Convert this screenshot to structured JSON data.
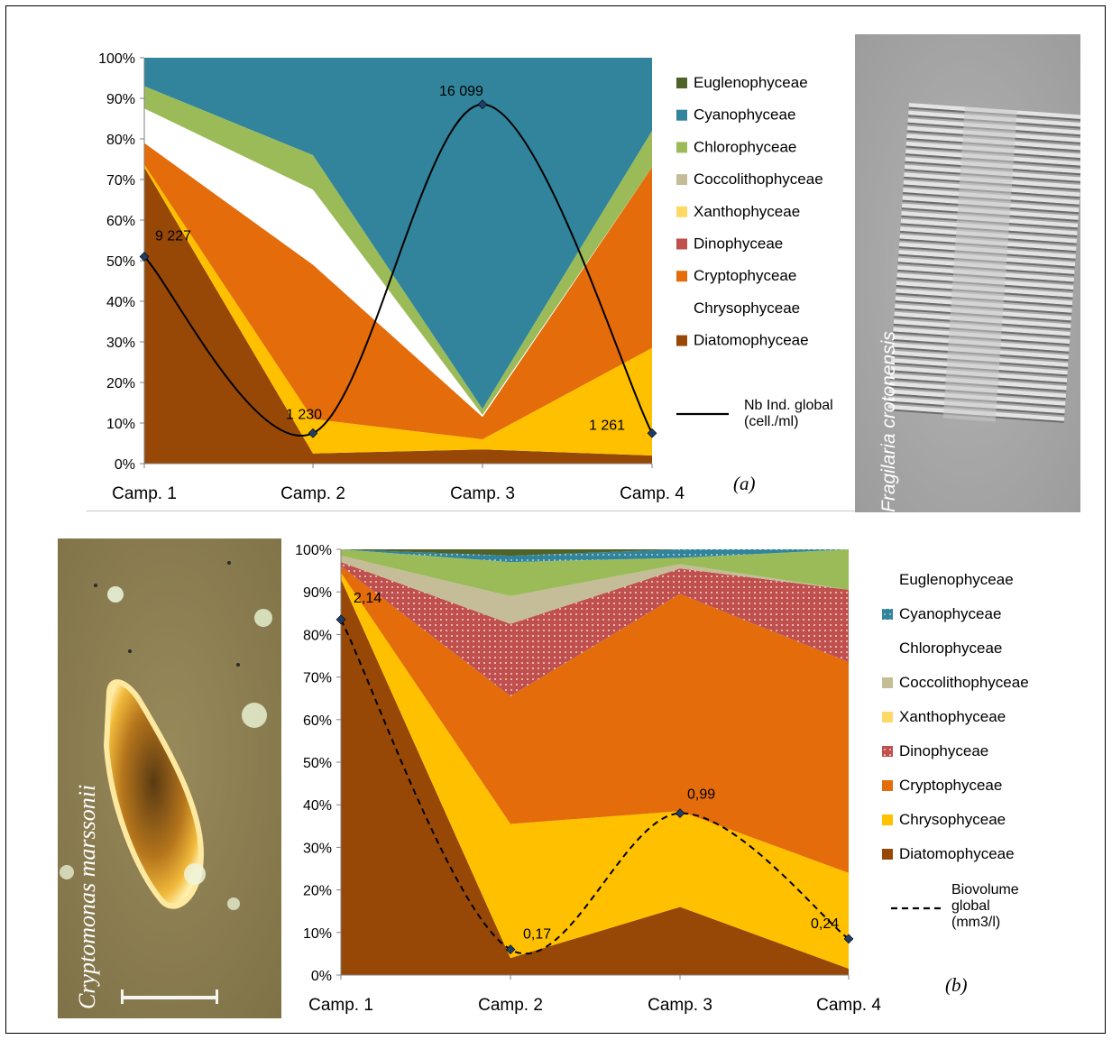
{
  "charts": {
    "a": {
      "panel_label": "(a)",
      "line_legend": [
        "Nb Ind. global",
        "(cell./ml)"
      ],
      "photo_caption": "Fragilaria crotonensis"
    },
    "b": {
      "panel_label": "(b)",
      "line_legend": [
        "Biovolume",
        "global",
        "(mm3/l)"
      ],
      "photo_caption": "Cryptomonas marssonii"
    }
  },
  "colors": {
    "Euglenophyceae": "#4f6228",
    "Cyanophyceae": "#31849b",
    "Chlorophyceae": "#9bbb59",
    "Coccolithophyceae": "#c4bd97",
    "Xanthophyceae": "#ffd966",
    "Dinophyceae": "#c0504d",
    "Cryptophyceae": "#e46c0a",
    "Chrysophyceae": "#ffc000",
    "Diatomophyceae": "#974806"
  },
  "chart_data": [
    {
      "type": "area",
      "stacked": "percent",
      "categories": [
        "Camp. 1",
        "Camp. 2",
        "Camp. 3",
        "Camp. 4"
      ],
      "ylim": [
        0,
        100
      ],
      "yticks": [
        "0%",
        "10%",
        "20%",
        "30%",
        "40%",
        "50%",
        "60%",
        "70%",
        "80%",
        "90%",
        "100%"
      ],
      "legend_position": "right",
      "legend": [
        "Euglenophyceae",
        "Cyanophyceae",
        "Chlorophyceae",
        "Coccolithophyceae",
        "Xanthophyceae",
        "Dinophyceae",
        "Cryptophyceae",
        "Chrysophyceae",
        "Diatomophyceae"
      ],
      "series": [
        {
          "name": "Diatomophyceae",
          "values": [
            73,
            2.5,
            3.5,
            2
          ]
        },
        {
          "name": "Chrysophyceae",
          "values": [
            0.7,
            8.5,
            2.5,
            26.5
          ]
        },
        {
          "name": "Cryptophyceae",
          "values": [
            5.3,
            38,
            5.5,
            44.5
          ]
        },
        {
          "name": "Chrysophyceae",
          "values": [
            8.5,
            18.5,
            0.5,
            0
          ]
        },
        {
          "name": "Chlorophyceae",
          "values": [
            5.5,
            8.5,
            1.5,
            9
          ]
        },
        {
          "name": "Cyanophyceae",
          "values": [
            7,
            24,
            86.5,
            18
          ]
        }
      ],
      "line": {
        "name": "Nb Ind. global (cell./ml)",
        "values": [
          9227,
          1230,
          16099,
          1261
        ],
        "labels": [
          "9 227",
          "1 230",
          "16 099",
          "1 261"
        ],
        "pct": [
          51,
          7.5,
          88.5,
          7.5
        ]
      }
    },
    {
      "type": "area",
      "stacked": "percent",
      "categories": [
        "Camp. 1",
        "Camp. 2",
        "Camp. 3",
        "Camp. 4"
      ],
      "ylim": [
        0,
        100
      ],
      "yticks": [
        "0%",
        "10%",
        "20%",
        "30%",
        "40%",
        "50%",
        "60%",
        "70%",
        "80%",
        "90%",
        "100%"
      ],
      "legend_position": "right",
      "legend": [
        "Euglenophyceae",
        "Cyanophyceae",
        "Chlorophyceae",
        "Coccolithophyceae",
        "Xanthophyceae",
        "Dinophyceae",
        "Cryptophyceae",
        "Chrysophyceae",
        "Diatomophyceae"
      ],
      "series": [
        {
          "name": "Diatomophyceae",
          "values": [
            93,
            4,
            16,
            1.5
          ]
        },
        {
          "name": "Chrysophyceae",
          "values": [
            1.5,
            31.5,
            22.5,
            22.5
          ]
        },
        {
          "name": "Cryptophyceae",
          "values": [
            1.5,
            30,
            51,
            49.5
          ]
        },
        {
          "name": "Dinophyceae",
          "values": [
            1,
            17,
            6,
            17
          ]
        },
        {
          "name": "Coccolithophyceae",
          "values": [
            1.5,
            6.5,
            1,
            0
          ]
        },
        {
          "name": "Chlorophyceae",
          "values": [
            1.5,
            8,
            1.5,
            9.5
          ]
        },
        {
          "name": "Cyanophyceae",
          "values": [
            0,
            1.5,
            2,
            0
          ]
        },
        {
          "name": "Euglenophyceae",
          "values": [
            0,
            1.5,
            0,
            0
          ]
        }
      ],
      "line": {
        "name": "Biovolume global (mm3/l)",
        "values": [
          2.14,
          0.17,
          0.99,
          0.24
        ],
        "labels": [
          "2,14",
          "0,17",
          "0,99",
          "0,24"
        ],
        "pct": [
          83.5,
          6,
          38,
          8.5
        ],
        "dashed": true
      }
    }
  ]
}
